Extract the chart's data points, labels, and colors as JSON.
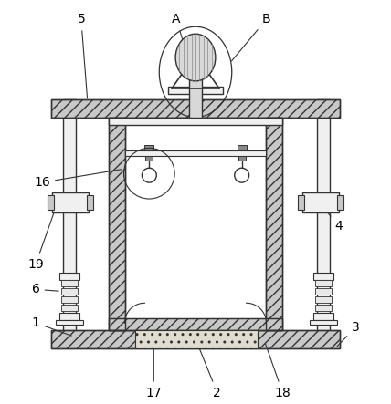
{
  "bg_color": "#ffffff",
  "line_color": "#333333",
  "figsize": [
    4.28,
    4.43
  ],
  "dpi": 100,
  "hatch_fc": "#c8c8c8",
  "light_fc": "#f0f0f0",
  "dot_fc": "#e0ddd0"
}
